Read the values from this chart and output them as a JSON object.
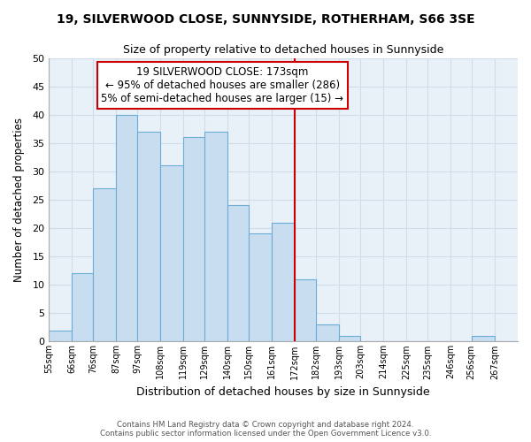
{
  "title": "19, SILVERWOOD CLOSE, SUNNYSIDE, ROTHERHAM, S66 3SE",
  "subtitle": "Size of property relative to detached houses in Sunnyside",
  "xlabel": "Distribution of detached houses by size in Sunnyside",
  "ylabel": "Number of detached properties",
  "bin_labels": [
    "55sqm",
    "66sqm",
    "76sqm",
    "87sqm",
    "97sqm",
    "108sqm",
    "119sqm",
    "129sqm",
    "140sqm",
    "150sqm",
    "161sqm",
    "172sqm",
    "182sqm",
    "193sqm",
    "203sqm",
    "214sqm",
    "225sqm",
    "235sqm",
    "246sqm",
    "256sqm",
    "267sqm"
  ],
  "bin_edges": [
    55,
    66,
    76,
    87,
    97,
    108,
    119,
    129,
    140,
    150,
    161,
    172,
    182,
    193,
    203,
    214,
    225,
    235,
    246,
    256,
    267
  ],
  "bar_heights": [
    2,
    12,
    27,
    40,
    37,
    31,
    36,
    37,
    24,
    19,
    21,
    11,
    3,
    1,
    0,
    0,
    0,
    0,
    0,
    1,
    0
  ],
  "bar_color": "#c9ddf0",
  "bar_edgecolor": "#6aadd5",
  "vline_x": 172,
  "vline_color": "#cc0000",
  "annotation_title": "19 SILVERWOOD CLOSE: 173sqm",
  "annotation_line1": "← 95% of detached houses are smaller (286)",
  "annotation_line2": "5% of semi-detached houses are larger (15) →",
  "annotation_box_color": "#ffffff",
  "annotation_box_edgecolor": "#cc0000",
  "ylim": [
    0,
    50
  ],
  "yticks": [
    0,
    5,
    10,
    15,
    20,
    25,
    30,
    35,
    40,
    45,
    50
  ],
  "footer_line1": "Contains HM Land Registry data © Crown copyright and database right 2024.",
  "footer_line2": "Contains public sector information licensed under the Open Government Licence v3.0.",
  "grid_color": "#d0dde8",
  "bg_color": "#e8f0f8"
}
